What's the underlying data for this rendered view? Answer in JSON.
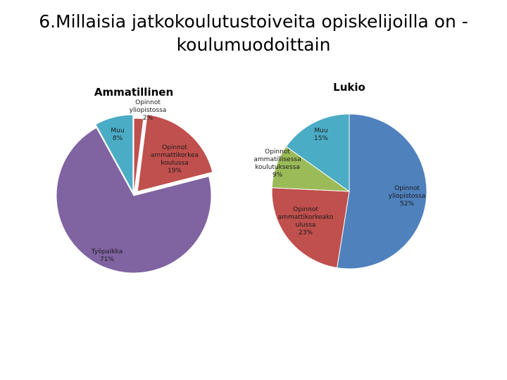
{
  "slide": {
    "title": "6.Millaisia jatkokoulutustoiveita opiskelijoilla on -\nkoulumuodoittain"
  },
  "chart_data": [
    {
      "type": "pie",
      "title": "Ammatillinen",
      "slices": [
        {
          "label": "Opinnot yliopistossa",
          "value": 2,
          "value_label": "2%",
          "color": "#c0504d"
        },
        {
          "label": "Opinnot ammattikorkea koulussa",
          "value": 19,
          "value_label": "19%",
          "color": "#c0504d"
        },
        {
          "label": "Työpaikka",
          "value": 71,
          "value_label": "71%",
          "color": "#8064a2"
        },
        {
          "label": "Muu",
          "value": 8,
          "value_label": "8%",
          "color": "#4bacc6"
        }
      ]
    },
    {
      "type": "pie",
      "title": "Lukio",
      "slices": [
        {
          "label": "Opinnot yliopistossa",
          "value": 52,
          "value_label": "52%",
          "color": "#4f81bd"
        },
        {
          "label": "Opinnot ammattikorkeako ulussa",
          "value": 23,
          "value_label": "23%",
          "color": "#c0504d"
        },
        {
          "label": "Opinnot ammatillisessa koulutuksessa",
          "value": 9,
          "value_label": "9%",
          "color": "#9bbb59"
        },
        {
          "label": "Muu",
          "value": 15,
          "value_label": "15%",
          "color": "#4bacc6"
        }
      ]
    }
  ]
}
